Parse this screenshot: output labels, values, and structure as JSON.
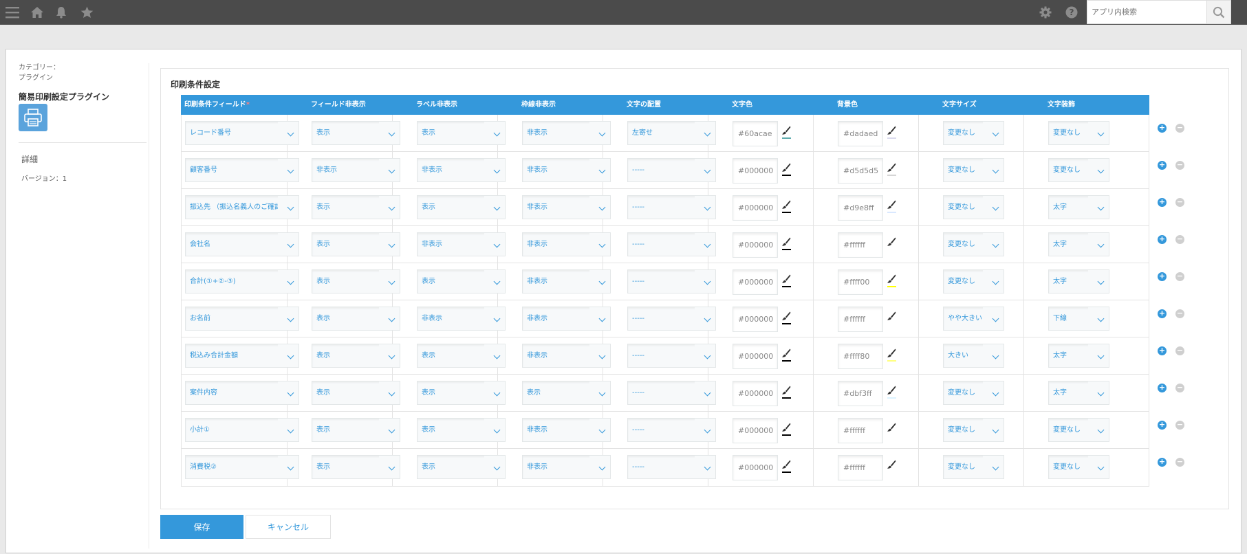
{
  "topbar": {
    "icons": [
      "menu-icon",
      "home-icon",
      "bell-icon",
      "star-icon",
      "gear-icon",
      "help-icon",
      "search-icon"
    ],
    "search_placeholder": "アプリ内検索"
  },
  "sidebar": {
    "category_label": "カテゴリー：",
    "category_value": "プラグイン",
    "plugin_name": "簡易印刷設定プラグイン",
    "detail_link": "詳細",
    "version": "バージョン：1"
  },
  "section_title": "印刷条件設定",
  "columns": [
    "印刷条件フィールド",
    "フィールド非表示",
    "ラベル非表示",
    "枠線非表示",
    "文字の配置",
    "文字色",
    "背景色",
    "文字サイズ",
    "文字装飾"
  ],
  "required_mark": "*",
  "rows": [
    {
      "field": "レコード番号",
      "field_hide": "表示",
      "label_hide": "表示",
      "border_hide": "非表示",
      "align": "左寄せ",
      "text_color": "#60acae",
      "bg_color": "#dadaed",
      "font_size": "変更なし",
      "decoration": "変更なし"
    },
    {
      "field": "顧客番号",
      "field_hide": "非表示",
      "label_hide": "非表示",
      "border_hide": "非表示",
      "align": "-----",
      "text_color": "#000000",
      "bg_color": "#d5d5d5",
      "font_size": "変更なし",
      "decoration": "変更なし"
    },
    {
      "field": "振込先 （振込名義人のご確認願い",
      "field_hide": "表示",
      "label_hide": "表示",
      "border_hide": "非表示",
      "align": "-----",
      "text_color": "#000000",
      "bg_color": "#d9e8ff",
      "font_size": "変更なし",
      "decoration": "太字"
    },
    {
      "field": "会社名",
      "field_hide": "表示",
      "label_hide": "非表示",
      "border_hide": "非表示",
      "align": "-----",
      "text_color": "#000000",
      "bg_color": "#ffffff",
      "font_size": "変更なし",
      "decoration": "太字"
    },
    {
      "field": "合計(①+②-③)",
      "field_hide": "表示",
      "label_hide": "表示",
      "border_hide": "非表示",
      "align": "-----",
      "text_color": "#000000",
      "bg_color": "#ffff00",
      "font_size": "変更なし",
      "decoration": "太字"
    },
    {
      "field": "お名前",
      "field_hide": "表示",
      "label_hide": "非表示",
      "border_hide": "非表示",
      "align": "-----",
      "text_color": "#000000",
      "bg_color": "#ffffff",
      "font_size": "やや大きい",
      "decoration": "下線"
    },
    {
      "field": "税込み合計金額",
      "field_hide": "表示",
      "label_hide": "表示",
      "border_hide": "非表示",
      "align": "-----",
      "text_color": "#000000",
      "bg_color": "#ffff80",
      "font_size": "大きい",
      "decoration": "太字"
    },
    {
      "field": "案件内容",
      "field_hide": "表示",
      "label_hide": "表示",
      "border_hide": "表示",
      "align": "-----",
      "text_color": "#000000",
      "bg_color": "#dbf3ff",
      "font_size": "変更なし",
      "decoration": "太字"
    },
    {
      "field": "小計①",
      "field_hide": "表示",
      "label_hide": "表示",
      "border_hide": "非表示",
      "align": "-----",
      "text_color": "#000000",
      "bg_color": "#ffffff",
      "font_size": "変更なし",
      "decoration": "変更なし"
    },
    {
      "field": "消費税②",
      "field_hide": "表示",
      "label_hide": "表示",
      "border_hide": "非表示",
      "align": "-----",
      "text_color": "#000000",
      "bg_color": "#ffffff",
      "font_size": "変更なし",
      "decoration": "変更なし"
    }
  ],
  "buttons": {
    "save": "保存",
    "cancel": "キャンセル",
    "add": "+",
    "remove": "−"
  },
  "colors": {
    "accent": "#3498db",
    "topbar": "#4b4b4b",
    "plugin_icon": "#5aa3dc"
  }
}
